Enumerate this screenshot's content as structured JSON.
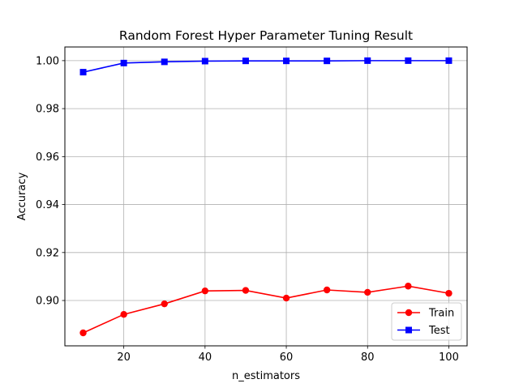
{
  "chart_data": {
    "type": "line",
    "title": "Random Forest Hyper Parameter Tuning Result",
    "xlabel": "n_estimators",
    "ylabel": "Accuracy",
    "x": [
      10,
      20,
      30,
      40,
      50,
      60,
      70,
      80,
      90,
      100
    ],
    "xlim": [
      5.5,
      104.5
    ],
    "ylim": [
      0.8811,
      1.0057
    ],
    "xticks": [
      20,
      40,
      60,
      80,
      100
    ],
    "yticks": [
      0.9,
      0.92,
      0.94,
      0.96,
      0.98,
      1.0
    ],
    "xtick_labels": [
      "20",
      "40",
      "60",
      "80",
      "100"
    ],
    "ytick_labels": [
      "0.90",
      "0.92",
      "0.94",
      "0.96",
      "0.98",
      "1.00"
    ],
    "grid": true,
    "legend_position": "lower-right",
    "series": [
      {
        "name": "Train",
        "color": "#ff0000",
        "marker": "circle",
        "values": [
          0.8865,
          0.8942,
          0.8986,
          0.904,
          0.9042,
          0.901,
          0.9044,
          0.9034,
          0.906,
          0.903
        ]
      },
      {
        "name": "Test",
        "color": "#0000ff",
        "marker": "square",
        "values": [
          0.9952,
          0.999,
          0.9995,
          0.9998,
          0.9999,
          0.9999,
          0.9999,
          1.0,
          1.0,
          1.0
        ]
      }
    ]
  }
}
